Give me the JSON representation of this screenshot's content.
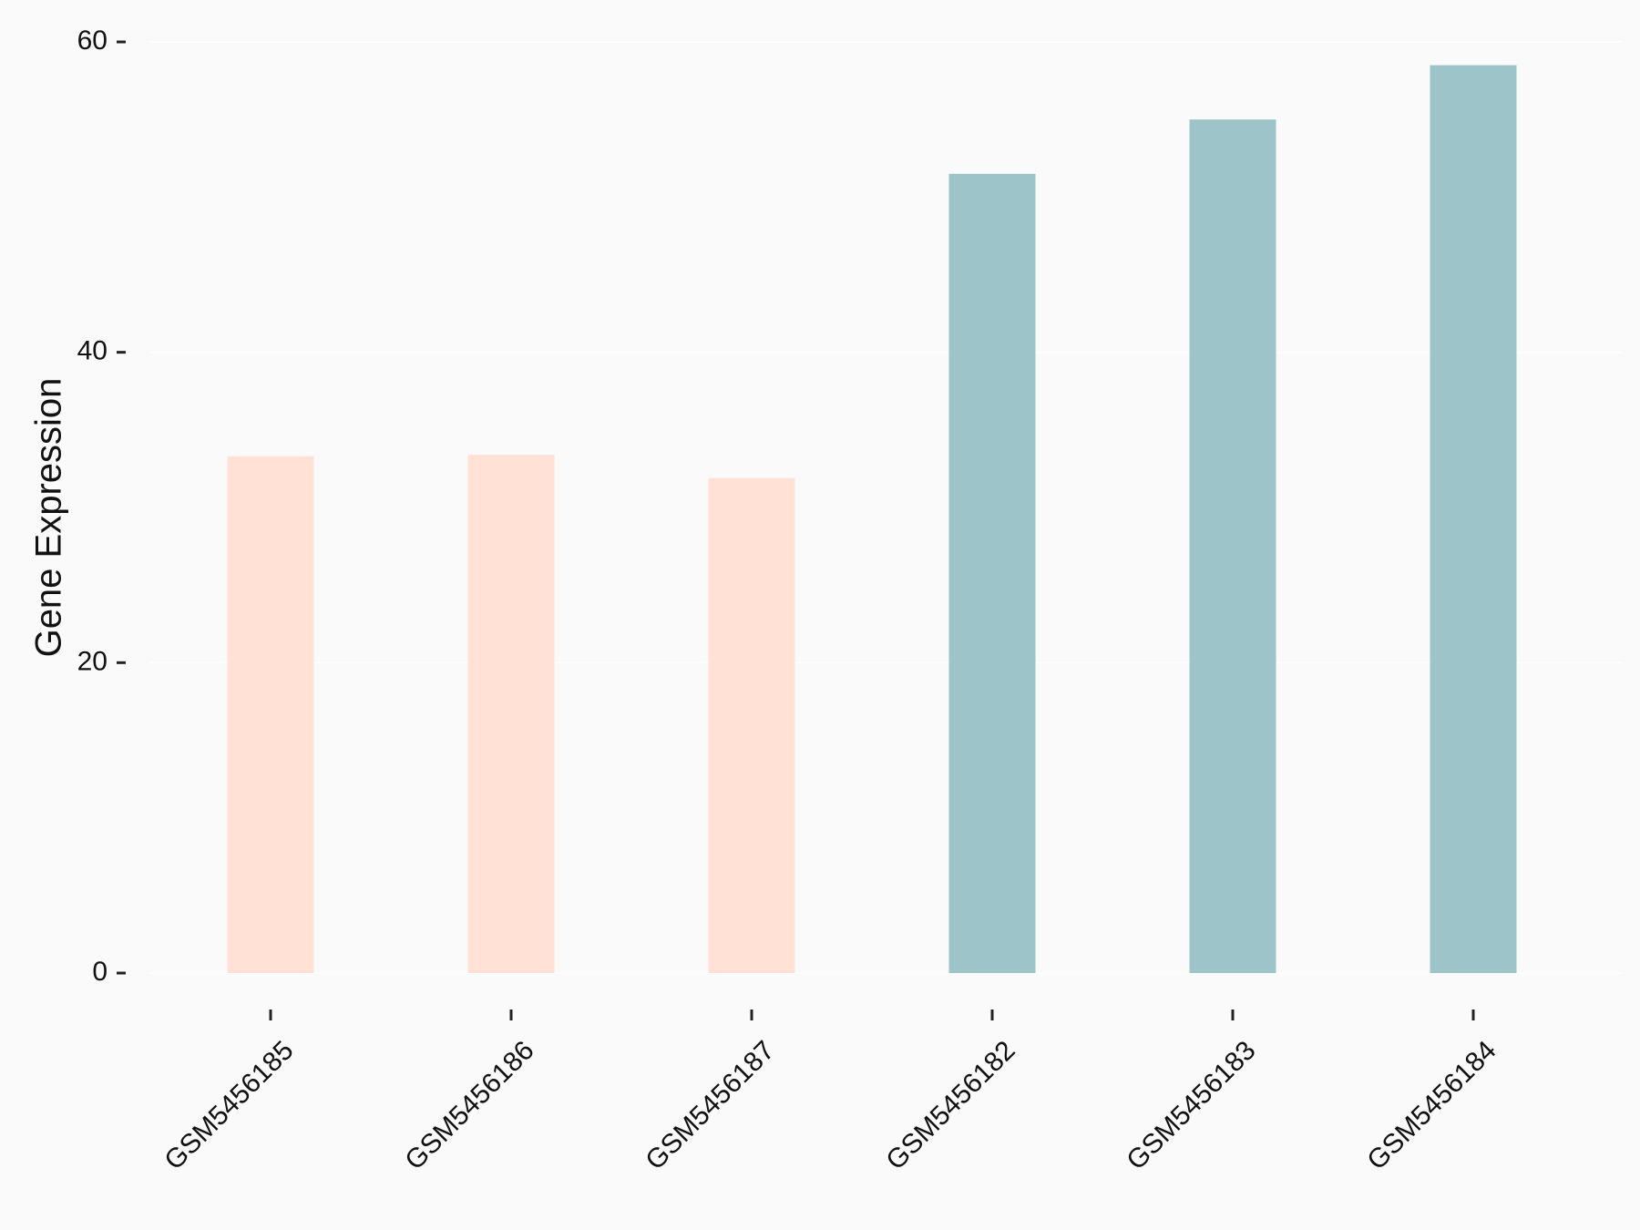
{
  "chart_data": {
    "type": "bar",
    "y_label": "Gene Expression",
    "categories": [
      "GSM5456185",
      "GSM5456186",
      "GSM5456187",
      "GSM5456182",
      "GSM5456183",
      "GSM5456184"
    ],
    "values": [
      33.3,
      33.4,
      31.9,
      51.5,
      55.0,
      58.5
    ],
    "colors": [
      "#ffe1d6",
      "#ffe1d6",
      "#ffe1d6",
      "#9dc4c8",
      "#9dc4c8",
      "#9dc4c8"
    ],
    "ylim": [
      0,
      60
    ],
    "yticks": [
      0,
      20,
      40,
      60
    ],
    "grid": true
  }
}
